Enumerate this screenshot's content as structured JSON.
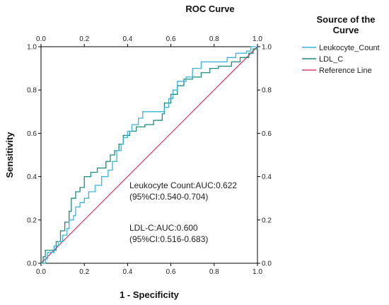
{
  "chart_data": {
    "type": "line",
    "title": "ROC Curve",
    "xlabel": "1 - Specificity",
    "ylabel": "Sensitivity",
    "xlim": [
      0,
      1
    ],
    "ylim": [
      0,
      1
    ],
    "ticks": [
      "0.0",
      "0.2",
      "0.4",
      "0.6",
      "0.8",
      "1.0"
    ],
    "tick_values": [
      0,
      0.2,
      0.4,
      0.6,
      0.8,
      1.0
    ],
    "grid": false,
    "legend": {
      "title_line1": "Source of the",
      "title_line2": "Curve",
      "placement": "right"
    },
    "series": [
      {
        "name": "Leukocyte_Count",
        "color": "#3ab4d8",
        "points": [
          [
            0,
            0
          ],
          [
            0.02,
            0.02
          ],
          [
            0.03,
            0.05
          ],
          [
            0.05,
            0.05
          ],
          [
            0.06,
            0.08
          ],
          [
            0.08,
            0.1
          ],
          [
            0.1,
            0.13
          ],
          [
            0.12,
            0.16
          ],
          [
            0.13,
            0.2
          ],
          [
            0.15,
            0.22
          ],
          [
            0.16,
            0.26
          ],
          [
            0.18,
            0.28
          ],
          [
            0.2,
            0.3
          ],
          [
            0.22,
            0.33
          ],
          [
            0.25,
            0.36
          ],
          [
            0.28,
            0.4
          ],
          [
            0.31,
            0.43
          ],
          [
            0.33,
            0.47
          ],
          [
            0.35,
            0.52
          ],
          [
            0.37,
            0.55
          ],
          [
            0.38,
            0.58
          ],
          [
            0.4,
            0.61
          ],
          [
            0.42,
            0.64
          ],
          [
            0.45,
            0.67
          ],
          [
            0.47,
            0.7
          ],
          [
            0.55,
            0.7
          ],
          [
            0.57,
            0.72
          ],
          [
            0.59,
            0.76
          ],
          [
            0.61,
            0.8
          ],
          [
            0.63,
            0.84
          ],
          [
            0.67,
            0.86
          ],
          [
            0.7,
            0.9
          ],
          [
            0.72,
            0.9
          ],
          [
            0.74,
            0.93
          ],
          [
            0.8,
            0.93
          ],
          [
            0.86,
            0.95
          ],
          [
            0.9,
            0.97
          ],
          [
            0.95,
            0.98
          ],
          [
            0.97,
            1.0
          ],
          [
            1.0,
            1.0
          ]
        ]
      },
      {
        "name": "LDL_C",
        "color": "#1c8c7d",
        "points": [
          [
            0,
            0
          ],
          [
            0.01,
            0.03
          ],
          [
            0.02,
            0.06
          ],
          [
            0.05,
            0.06
          ],
          [
            0.07,
            0.1
          ],
          [
            0.09,
            0.15
          ],
          [
            0.11,
            0.19
          ],
          [
            0.13,
            0.24
          ],
          [
            0.14,
            0.3
          ],
          [
            0.16,
            0.33
          ],
          [
            0.18,
            0.35
          ],
          [
            0.2,
            0.4
          ],
          [
            0.23,
            0.42
          ],
          [
            0.26,
            0.44
          ],
          [
            0.3,
            0.47
          ],
          [
            0.32,
            0.5
          ],
          [
            0.34,
            0.52
          ],
          [
            0.36,
            0.55
          ],
          [
            0.38,
            0.59
          ],
          [
            0.41,
            0.61
          ],
          [
            0.44,
            0.63
          ],
          [
            0.48,
            0.64
          ],
          [
            0.52,
            0.66
          ],
          [
            0.56,
            0.69
          ],
          [
            0.57,
            0.74
          ],
          [
            0.6,
            0.78
          ],
          [
            0.63,
            0.82
          ],
          [
            0.66,
            0.85
          ],
          [
            0.7,
            0.86
          ],
          [
            0.74,
            0.88
          ],
          [
            0.78,
            0.9
          ],
          [
            0.82,
            0.91
          ],
          [
            0.88,
            0.93
          ],
          [
            0.92,
            0.95
          ],
          [
            0.96,
            0.97
          ],
          [
            0.98,
            0.99
          ],
          [
            1.0,
            1.0
          ]
        ]
      },
      {
        "name": "Reference Line",
        "color": "#d6406c",
        "points": [
          [
            0,
            0
          ],
          [
            1,
            1
          ]
        ]
      }
    ],
    "annotations": [
      {
        "line1": "Leukocyte Count:AUC:0.622",
        "line2": "(95%CI:0.540-0.704)"
      },
      {
        "line1": "LDL-C:AUC:0.600",
        "line2": "(95%CI:0.516-0.683)"
      }
    ]
  }
}
